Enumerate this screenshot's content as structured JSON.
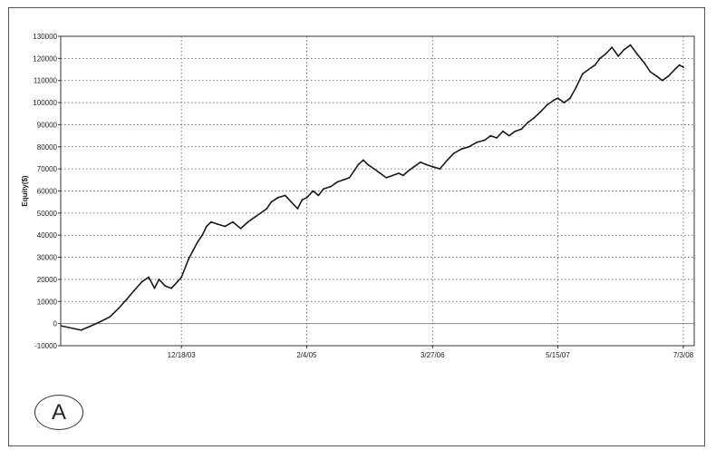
{
  "chart_data": {
    "type": "line",
    "title": "",
    "xlabel": "",
    "ylabel": "Equity($)",
    "ylim": [
      -10000,
      130000
    ],
    "y_ticks": [
      -10000,
      0,
      10000,
      20000,
      30000,
      40000,
      50000,
      60000,
      70000,
      80000,
      90000,
      100000,
      110000,
      120000,
      130000
    ],
    "y_tick_labels": [
      "-10000",
      "0",
      "10000",
      "20000",
      "30000",
      "40000",
      "50000",
      "60000",
      "70000",
      "80000",
      "90000",
      "100000",
      "110000",
      "120000",
      "130000"
    ],
    "xlim": [
      "2002-11-14",
      "2008-08-08"
    ],
    "x_ticks": [
      "2003-12-18",
      "2005-02-04",
      "2006-03-27",
      "2007-05-15",
      "2008-07-03"
    ],
    "x_tick_labels": [
      "12/18/03",
      "2/4/05",
      "3/27/06",
      "5/15/07",
      "7/3/08"
    ],
    "grid": true,
    "legend": "none",
    "line_color": "#1a1a1a",
    "zero_line_color": "#888888",
    "series": [
      {
        "x": [
          "2002-11-15",
          "2003-01-20",
          "2003-02-15",
          "2003-03-20",
          "2003-04-25",
          "2003-05-25",
          "2003-06-20",
          "2003-07-15",
          "2003-08-10",
          "2003-09-01",
          "2003-09-20",
          "2003-10-05",
          "2003-10-25",
          "2003-11-15",
          "2003-12-05",
          "2003-12-18",
          "2004-01-10",
          "2004-01-25",
          "2004-02-10",
          "2004-02-25",
          "2004-03-10",
          "2004-03-25",
          "2004-04-15",
          "2004-05-10",
          "2004-06-05",
          "2004-07-01",
          "2004-07-25",
          "2004-08-15",
          "2004-09-05",
          "2004-09-25",
          "2004-10-10",
          "2004-11-01",
          "2004-11-25",
          "2004-12-15",
          "2005-01-05",
          "2005-01-20",
          "2005-02-04",
          "2005-02-25",
          "2005-03-15",
          "2005-04-01",
          "2005-04-25",
          "2005-05-15",
          "2005-06-05",
          "2005-06-25",
          "2005-07-10",
          "2005-07-25",
          "2005-08-10",
          "2005-08-25",
          "2005-09-15",
          "2005-10-05",
          "2005-10-25",
          "2005-11-15",
          "2005-12-05",
          "2005-12-20",
          "2006-01-05",
          "2006-01-25",
          "2006-02-15",
          "2006-03-05",
          "2006-03-27",
          "2006-04-20",
          "2006-05-15",
          "2006-06-05",
          "2006-07-01",
          "2006-07-25",
          "2006-08-20",
          "2006-09-15",
          "2006-10-05",
          "2006-10-25",
          "2006-11-15",
          "2006-12-05",
          "2006-12-25",
          "2007-01-15",
          "2007-02-05",
          "2007-02-25",
          "2007-03-20",
          "2007-04-10",
          "2007-05-01",
          "2007-05-15",
          "2007-06-05",
          "2007-06-25",
          "2007-07-15",
          "2007-08-05",
          "2007-08-25",
          "2007-09-15",
          "2007-10-01",
          "2007-10-20",
          "2007-11-10",
          "2007-12-01",
          "2007-12-20",
          "2008-01-10",
          "2008-02-01",
          "2008-02-25",
          "2008-03-15",
          "2008-04-05",
          "2008-04-25",
          "2008-05-15",
          "2008-06-05",
          "2008-06-20",
          "2008-07-03"
        ],
        "y": [
          -1000,
          -3000,
          -1500,
          500,
          3000,
          7000,
          11000,
          15000,
          19000,
          21000,
          16000,
          20000,
          17000,
          16000,
          19000,
          21000,
          29000,
          33000,
          37000,
          40000,
          44000,
          46000,
          45000,
          44000,
          46000,
          43000,
          46000,
          48000,
          50000,
          52000,
          55000,
          57000,
          58000,
          55000,
          52000,
          56000,
          57000,
          60000,
          58000,
          61000,
          62000,
          64000,
          65000,
          66000,
          69000,
          72000,
          74000,
          72000,
          70000,
          68000,
          66000,
          67000,
          68000,
          67000,
          69000,
          71000,
          73000,
          72000,
          71000,
          70000,
          74000,
          77000,
          79000,
          80000,
          82000,
          83000,
          85000,
          84000,
          87000,
          85000,
          87000,
          88000,
          91000,
          93000,
          96000,
          99000,
          101000,
          102000,
          100000,
          102000,
          107000,
          113000,
          115000,
          117000,
          120000,
          122000,
          125000,
          121000,
          124000,
          126000,
          122000,
          118000,
          114000,
          112000,
          110000,
          112000,
          115000,
          117000,
          116000
        ]
      }
    ]
  },
  "panel_label": "A"
}
